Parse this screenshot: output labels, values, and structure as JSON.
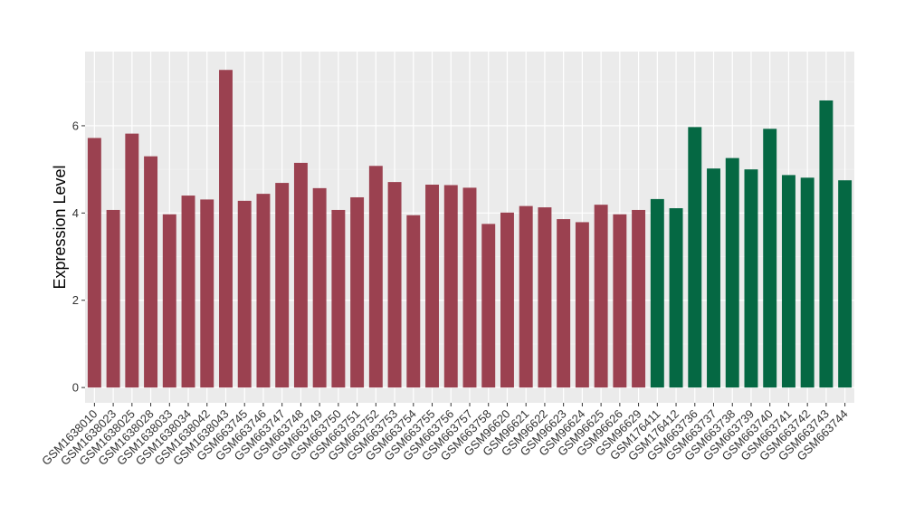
{
  "chart_data": {
    "type": "bar",
    "title": "",
    "xlabel": "",
    "ylabel": "Expression Level",
    "ylim": [
      -0.35,
      7.7
    ],
    "yticks": [
      0,
      2,
      4,
      6
    ],
    "grid": true,
    "panel_background": "#ebebeb",
    "categories": [
      "GSM1638010",
      "GSM1638023",
      "GSM1638025",
      "GSM1638028",
      "GSM1638033",
      "GSM1638034",
      "GSM1638042",
      "GSM1638043",
      "GSM663745",
      "GSM663746",
      "GSM663747",
      "GSM663748",
      "GSM663749",
      "GSM663750",
      "GSM663751",
      "GSM663752",
      "GSM663753",
      "GSM663754",
      "GSM663755",
      "GSM663756",
      "GSM663757",
      "GSM663758",
      "GSM96620",
      "GSM96621",
      "GSM96622",
      "GSM96623",
      "GSM96624",
      "GSM96625",
      "GSM96626",
      "GSM96629",
      "GSM176411",
      "GSM176412",
      "GSM663736",
      "GSM663737",
      "GSM663738",
      "GSM663739",
      "GSM663740",
      "GSM663741",
      "GSM663742",
      "GSM663743",
      "GSM663744"
    ],
    "values": [
      5.72,
      4.07,
      5.82,
      5.3,
      3.97,
      4.4,
      4.31,
      7.28,
      4.28,
      4.44,
      4.69,
      5.15,
      4.57,
      4.07,
      4.36,
      5.08,
      4.71,
      3.95,
      4.65,
      4.64,
      4.58,
      3.75,
      4.01,
      4.16,
      4.13,
      3.86,
      3.79,
      4.19,
      3.97,
      4.07,
      4.32,
      4.11,
      5.97,
      5.02,
      5.26,
      5.0,
      5.93,
      4.87,
      4.81,
      6.58,
      4.75
    ],
    "groups": [
      "red",
      "red",
      "red",
      "red",
      "red",
      "red",
      "red",
      "red",
      "red",
      "red",
      "red",
      "red",
      "red",
      "red",
      "red",
      "red",
      "red",
      "red",
      "red",
      "red",
      "red",
      "red",
      "red",
      "red",
      "red",
      "red",
      "red",
      "red",
      "red",
      "red",
      "green",
      "green",
      "green",
      "green",
      "green",
      "green",
      "green",
      "green",
      "green",
      "green",
      "green"
    ],
    "colors": {
      "red": "#9b4150",
      "green": "#056843"
    }
  }
}
